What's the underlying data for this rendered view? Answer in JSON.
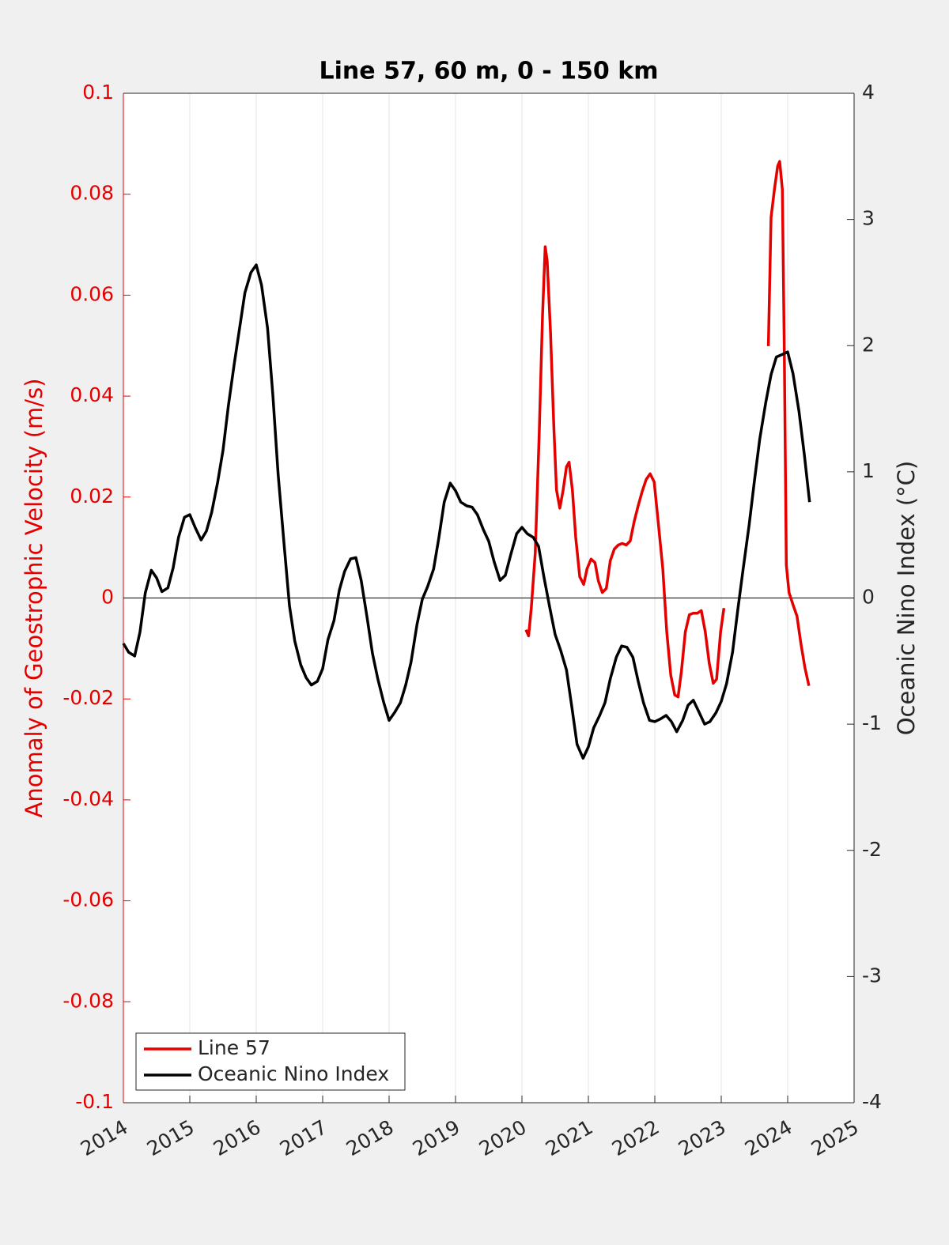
{
  "chart_data": {
    "type": "line",
    "title": "Line 57, 60 m, 0 - 150 km",
    "ylabel": "Anomaly of Geostrophic Velocity (m/s)",
    "ylabel_color": "#e50000",
    "y2label": "Oceanic Nino Index (°C)",
    "xlim": [
      2014,
      2025
    ],
    "xticks": [
      2014,
      2015,
      2016,
      2017,
      2018,
      2019,
      2020,
      2021,
      2022,
      2023,
      2024,
      2025
    ],
    "ylim": [
      -0.1,
      0.1
    ],
    "yticks": [
      -0.1,
      -0.08,
      -0.06,
      -0.04,
      -0.02,
      0,
      0.02,
      0.04,
      0.06,
      0.08,
      0.1
    ],
    "y2lim": [
      -4,
      4
    ],
    "y2ticks": [
      -4,
      -3,
      -2,
      -1,
      0,
      1,
      2,
      3,
      4
    ],
    "grid": "x",
    "hline": 0,
    "legend": "lower left",
    "series": [
      {
        "name": "Line 57",
        "color": "#e50000",
        "x": [
          2020.06,
          2020.1,
          2020.14,
          2020.2,
          2020.26,
          2020.31,
          2020.35,
          2020.38,
          2020.43,
          2020.48,
          2020.52,
          2020.57,
          2020.62,
          2020.67,
          2020.71,
          2020.76,
          2020.81,
          2020.87,
          2020.93,
          2020.98,
          2021.04,
          2021.1,
          2021.15,
          2021.21,
          2021.27,
          2021.33,
          2021.39,
          2021.45,
          2021.51,
          2021.57,
          2021.63,
          2021.69,
          2021.75,
          2021.81,
          2021.87,
          2021.93,
          2021.99,
          2022.05,
          2022.12,
          2022.18,
          2022.24,
          2022.3,
          2022.35,
          2022.4,
          2022.46,
          2022.52,
          2022.58,
          2022.64,
          2022.7,
          2022.76,
          2022.82,
          2022.88,
          2022.93,
          2022.99,
          2023.04,
          2023.4,
          2023.71,
          2023.75,
          2023.8,
          2023.85,
          2023.88,
          2023.92,
          2023.95,
          2023.98,
          2024.02,
          2024.08,
          2024.14,
          2024.2,
          2024.26,
          2024.32
        ],
        "values": [
          -0.0063,
          -0.0075,
          -0.002,
          0.0089,
          0.0324,
          0.0559,
          0.0696,
          0.0668,
          0.0527,
          0.034,
          0.0214,
          0.0178,
          0.0214,
          0.026,
          0.0269,
          0.0214,
          0.012,
          0.0042,
          0.0027,
          0.0058,
          0.0077,
          0.007,
          0.0034,
          0.0011,
          0.0019,
          0.0074,
          0.0097,
          0.0105,
          0.0108,
          0.0105,
          0.0113,
          0.0152,
          0.0183,
          0.0211,
          0.0235,
          0.0246,
          0.023,
          0.0152,
          0.0058,
          -0.0067,
          -0.0153,
          -0.0192,
          -0.0196,
          -0.0146,
          -0.0067,
          -0.0033,
          -0.003,
          -0.003,
          -0.0025,
          -0.0067,
          -0.013,
          -0.0169,
          -0.0161,
          -0.0067,
          -0.002,
          null,
          0.0499,
          0.0754,
          0.0809,
          0.0856,
          0.0865,
          0.0809,
          0.048,
          0.0066,
          0.0011,
          -0.0013,
          -0.0036,
          -0.0091,
          -0.0138,
          -0.0174
        ]
      },
      {
        "name": "Oceanic Nino Index",
        "color": "#000000",
        "axis": "y2",
        "x": [
          2014.0,
          2014.08,
          2014.17,
          2014.25,
          2014.33,
          2014.42,
          2014.5,
          2014.58,
          2014.67,
          2014.75,
          2014.83,
          2014.92,
          2015.0,
          2015.08,
          2015.17,
          2015.25,
          2015.33,
          2015.42,
          2015.5,
          2015.58,
          2015.67,
          2015.75,
          2015.83,
          2015.92,
          2016.0,
          2016.08,
          2016.17,
          2016.25,
          2016.33,
          2016.42,
          2016.5,
          2016.58,
          2016.67,
          2016.75,
          2016.83,
          2016.92,
          2017.0,
          2017.08,
          2017.17,
          2017.25,
          2017.33,
          2017.42,
          2017.5,
          2017.58,
          2017.67,
          2017.75,
          2017.83,
          2017.92,
          2018.0,
          2018.08,
          2018.17,
          2018.25,
          2018.33,
          2018.42,
          2018.5,
          2018.58,
          2018.67,
          2018.75,
          2018.83,
          2018.92,
          2019.0,
          2019.08,
          2019.17,
          2019.25,
          2019.33,
          2019.42,
          2019.5,
          2019.58,
          2019.67,
          2019.75,
          2019.83,
          2019.92,
          2020.0,
          2020.08,
          2020.17,
          2020.25,
          2020.33,
          2020.42,
          2020.5,
          2020.58,
          2020.67,
          2020.75,
          2020.83,
          2020.92,
          2021.0,
          2021.08,
          2021.17,
          2021.25,
          2021.33,
          2021.42,
          2021.5,
          2021.58,
          2021.67,
          2021.75,
          2021.83,
          2021.92,
          2022.0,
          2022.08,
          2022.17,
          2022.25,
          2022.33,
          2022.42,
          2022.5,
          2022.58,
          2022.67,
          2022.75,
          2022.83,
          2022.92,
          2023.0,
          2023.08,
          2023.17,
          2023.25,
          2023.33,
          2023.42,
          2023.5,
          2023.58,
          2023.67,
          2023.75,
          2023.83,
          2023.92,
          2024.0,
          2024.08,
          2024.17,
          2024.25,
          2024.33
        ],
        "values": [
          -0.36,
          -0.43,
          -0.46,
          -0.27,
          0.04,
          0.22,
          0.16,
          0.05,
          0.08,
          0.24,
          0.48,
          0.64,
          0.66,
          0.56,
          0.46,
          0.53,
          0.68,
          0.92,
          1.17,
          1.52,
          1.86,
          2.14,
          2.42,
          2.58,
          2.64,
          2.48,
          2.14,
          1.61,
          0.98,
          0.42,
          -0.06,
          -0.34,
          -0.53,
          -0.63,
          -0.69,
          -0.66,
          -0.56,
          -0.33,
          -0.18,
          0.06,
          0.21,
          0.31,
          0.32,
          0.14,
          -0.16,
          -0.44,
          -0.64,
          -0.83,
          -0.97,
          -0.91,
          -0.83,
          -0.69,
          -0.51,
          -0.21,
          -0.01,
          0.09,
          0.23,
          0.48,
          0.76,
          0.91,
          0.85,
          0.76,
          0.73,
          0.72,
          0.66,
          0.54,
          0.45,
          0.29,
          0.14,
          0.18,
          0.34,
          0.51,
          0.56,
          0.51,
          0.48,
          0.41,
          0.17,
          -0.08,
          -0.29,
          -0.41,
          -0.57,
          -0.86,
          -1.16,
          -1.27,
          -1.18,
          -1.03,
          -0.93,
          -0.83,
          -0.64,
          -0.47,
          -0.38,
          -0.39,
          -0.47,
          -0.66,
          -0.83,
          -0.97,
          -0.98,
          -0.96,
          -0.93,
          -0.98,
          -1.06,
          -0.97,
          -0.85,
          -0.81,
          -0.91,
          -1.0,
          -0.98,
          -0.91,
          -0.82,
          -0.68,
          -0.43,
          -0.09,
          0.23,
          0.58,
          0.93,
          1.26,
          1.55,
          1.77,
          1.91,
          1.93,
          1.95,
          1.78,
          1.48,
          1.14,
          0.76
        ]
      }
    ]
  }
}
